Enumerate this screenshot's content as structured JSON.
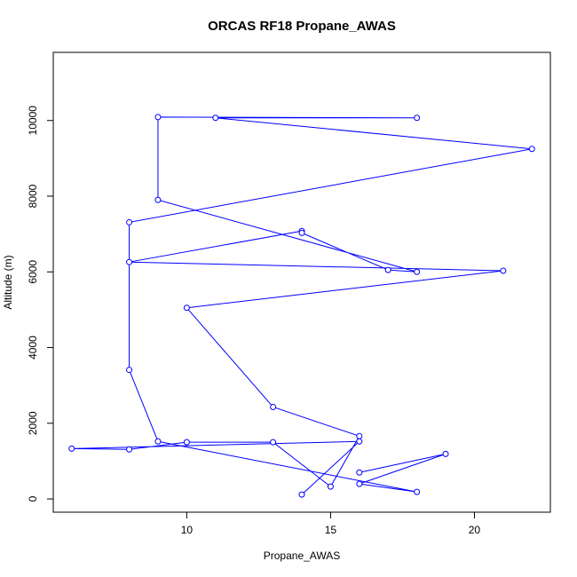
{
  "chart_data": {
    "type": "line",
    "title": "ORCAS RF18 Propane_AWAS",
    "x_label": "Propane_AWAS",
    "y_label": "Altitude (m)",
    "x": [
      14,
      16,
      6,
      8,
      10,
      13,
      15,
      16,
      13,
      10,
      21,
      8,
      14,
      14,
      17,
      18,
      9,
      9,
      18,
      11,
      22,
      8,
      8,
      9,
      18,
      16,
      19,
      16
    ],
    "values": [
      117,
      1520,
      1330,
      1310,
      1500,
      1500,
      327,
      1660,
      2430,
      5050,
      6030,
      6260,
      7080,
      7030,
      6050,
      6000,
      7900,
      10090,
      10070,
      10070,
      9250,
      7310,
      3410,
      1520,
      187,
      397,
      1190,
      700
    ],
    "color": "#0000ff",
    "xlim": [
      5.36,
      22.64
    ],
    "ylim": [
      -350,
      11800
    ],
    "xticks": [
      10,
      15,
      20
    ],
    "yticks": [
      0,
      2000,
      4000,
      6000,
      8000,
      10000
    ]
  }
}
